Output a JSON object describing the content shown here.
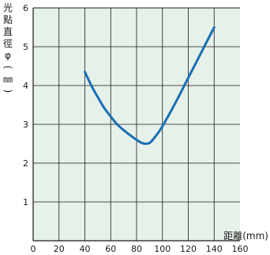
{
  "chart_data": {
    "type": "line",
    "ylabel_chars": [
      "光",
      "點",
      "直",
      "徑",
      "φ",
      "(",
      "㎜",
      ")"
    ],
    "xlabel": "距離(mm)",
    "xlim": [
      0,
      160
    ],
    "ylim": [
      0,
      6
    ],
    "x_ticks": [
      0,
      20,
      40,
      60,
      80,
      100,
      120,
      140,
      160
    ],
    "y_ticks": [
      1,
      2,
      3,
      4,
      5,
      6
    ],
    "grid": true,
    "colors": {
      "background": "#e6f1e9",
      "grid": "#1a1a1a",
      "line": "#1a6fb5"
    },
    "series": [
      {
        "x": [
          40,
          45,
          50,
          55,
          60,
          65,
          70,
          75,
          80,
          84,
          87,
          90,
          93,
          96,
          100,
          110,
          120,
          130,
          140
        ],
        "y": [
          4.35,
          4.0,
          3.7,
          3.42,
          3.2,
          3.0,
          2.85,
          2.72,
          2.6,
          2.52,
          2.5,
          2.52,
          2.62,
          2.75,
          2.95,
          3.55,
          4.2,
          4.85,
          5.5
        ]
      }
    ]
  }
}
